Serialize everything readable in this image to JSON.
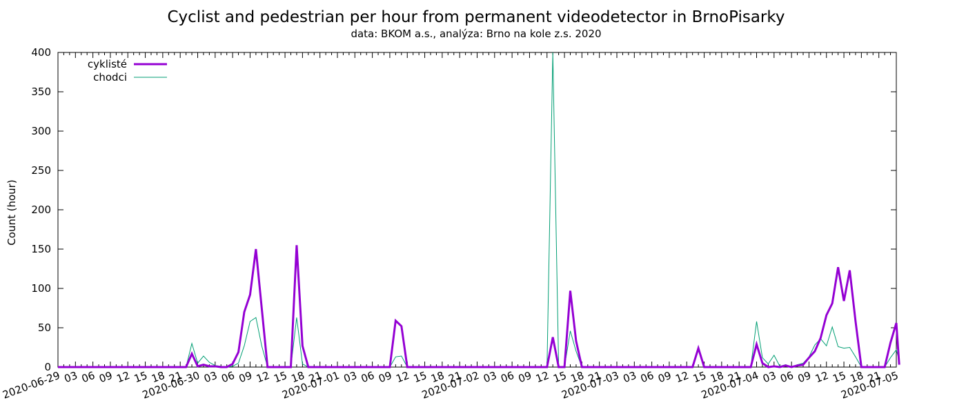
{
  "chart_data": {
    "type": "line",
    "title": "Cyclist and pedestrian per hour from permanent videodetector in BrnoPisarky",
    "subtitle": "data: BKOM a.s., analýza: Brno na kole z.s. 2020",
    "ylabel": "Count (hour)",
    "xlabel": "",
    "ylim": [
      0,
      400
    ],
    "yticks": [
      0,
      50,
      100,
      150,
      200,
      250,
      300,
      350,
      400
    ],
    "xlim": [
      "2020-06-29 00:00",
      "2020-07-05 00:00"
    ],
    "xticks": [
      "2020-06-29",
      "03",
      "06",
      "09",
      "12",
      "15",
      "18",
      "21",
      "2020-06-30",
      "03",
      "06",
      "09",
      "12",
      "15",
      "18",
      "21",
      "2020-07-01",
      "03",
      "06",
      "09",
      "12",
      "15",
      "18",
      "21",
      "2020-07-02",
      "03",
      "06",
      "09",
      "12",
      "15",
      "18",
      "21",
      "2020-07-03",
      "03",
      "06",
      "09",
      "12",
      "15",
      "18",
      "21",
      "2020-07-04",
      "03",
      "06",
      "09",
      "12",
      "15",
      "18",
      "21",
      "2020-07-05"
    ],
    "legend_position": "top-left",
    "grid": false,
    "colors": {
      "cykliste": "#9400d3",
      "chodci": "#009e73"
    },
    "series": [
      {
        "name": "cyklisté",
        "color": "#9400d3",
        "points": [
          [
            "2020-06-29 00:00",
            0
          ],
          [
            "2020-06-29 22:00",
            0
          ],
          [
            "2020-06-29 23:00",
            17
          ],
          [
            "2020-06-30 00:00",
            1
          ],
          [
            "2020-06-30 01:00",
            3
          ],
          [
            "2020-06-30 02:00",
            1
          ],
          [
            "2020-06-30 03:00",
            1
          ],
          [
            "2020-06-30 04:00",
            0
          ],
          [
            "2020-06-30 05:00",
            0
          ],
          [
            "2020-06-30 06:00",
            4
          ],
          [
            "2020-06-30 07:00",
            19
          ],
          [
            "2020-06-30 08:00",
            70
          ],
          [
            "2020-06-30 09:00",
            92
          ],
          [
            "2020-06-30 10:00",
            150
          ],
          [
            "2020-06-30 11:00",
            75
          ],
          [
            "2020-06-30 12:00",
            0
          ],
          [
            "2020-06-30 16:00",
            0
          ],
          [
            "2020-06-30 17:00",
            155
          ],
          [
            "2020-06-30 18:00",
            27
          ],
          [
            "2020-06-30 19:00",
            0
          ],
          [
            "2020-07-01 09:00",
            0
          ],
          [
            "2020-07-01 10:00",
            59
          ],
          [
            "2020-07-01 11:00",
            52
          ],
          [
            "2020-07-01 12:00",
            0
          ],
          [
            "2020-07-02 12:00",
            0
          ],
          [
            "2020-07-02 13:00",
            38
          ],
          [
            "2020-07-02 14:00",
            0
          ],
          [
            "2020-07-02 15:00",
            0
          ],
          [
            "2020-07-02 16:00",
            97
          ],
          [
            "2020-07-02 17:00",
            33
          ],
          [
            "2020-07-02 18:00",
            0
          ],
          [
            "2020-07-03 13:00",
            0
          ],
          [
            "2020-07-03 14:00",
            24
          ],
          [
            "2020-07-03 15:00",
            0
          ],
          [
            "2020-07-03 23:00",
            0
          ],
          [
            "2020-07-04 00:00",
            29
          ],
          [
            "2020-07-04 01:00",
            5
          ],
          [
            "2020-07-04 02:00",
            0
          ],
          [
            "2020-07-04 03:00",
            1
          ],
          [
            "2020-07-04 04:00",
            0
          ],
          [
            "2020-07-04 05:00",
            2
          ],
          [
            "2020-07-04 06:00",
            0
          ],
          [
            "2020-07-04 07:00",
            2
          ],
          [
            "2020-07-04 08:00",
            3
          ],
          [
            "2020-07-04 09:00",
            12
          ],
          [
            "2020-07-04 10:00",
            20
          ],
          [
            "2020-07-04 11:00",
            37
          ],
          [
            "2020-07-04 12:00",
            66
          ],
          [
            "2020-07-04 13:00",
            81
          ],
          [
            "2020-07-04 14:00",
            127
          ],
          [
            "2020-07-04 15:00",
            84
          ],
          [
            "2020-07-04 16:00",
            123
          ],
          [
            "2020-07-04 17:00",
            58
          ],
          [
            "2020-07-04 18:00",
            0
          ],
          [
            "2020-07-04 22:00",
            0
          ],
          [
            "2020-07-04 23:00",
            31
          ],
          [
            "2020-07-05 00:00",
            56
          ],
          [
            "2020-07-05 00:30",
            3
          ]
        ]
      },
      {
        "name": "chodci",
        "color": "#009e73",
        "points": [
          [
            "2020-06-29 00:00",
            0
          ],
          [
            "2020-06-29 22:00",
            0
          ],
          [
            "2020-06-29 23:00",
            30
          ],
          [
            "2020-06-30 00:00",
            5
          ],
          [
            "2020-06-30 01:00",
            14
          ],
          [
            "2020-06-30 02:00",
            6
          ],
          [
            "2020-06-30 03:00",
            2
          ],
          [
            "2020-06-30 04:00",
            1
          ],
          [
            "2020-06-30 05:00",
            0
          ],
          [
            "2020-06-30 06:00",
            1
          ],
          [
            "2020-06-30 07:00",
            5
          ],
          [
            "2020-06-30 08:00",
            27
          ],
          [
            "2020-06-30 09:00",
            58
          ],
          [
            "2020-06-30 10:00",
            63
          ],
          [
            "2020-06-30 11:00",
            27
          ],
          [
            "2020-06-30 12:00",
            0
          ],
          [
            "2020-06-30 16:00",
            0
          ],
          [
            "2020-06-30 17:00",
            63
          ],
          [
            "2020-06-30 18:00",
            4
          ],
          [
            "2020-06-30 19:00",
            0
          ],
          [
            "2020-07-01 09:00",
            0
          ],
          [
            "2020-07-01 10:00",
            13
          ],
          [
            "2020-07-01 11:00",
            14
          ],
          [
            "2020-07-01 12:00",
            0
          ],
          [
            "2020-07-02 12:00",
            0
          ],
          [
            "2020-07-02 13:00",
            400
          ],
          [
            "2020-07-02 14:00",
            0
          ],
          [
            "2020-07-02 15:00",
            0
          ],
          [
            "2020-07-02 16:00",
            46
          ],
          [
            "2020-07-02 17:00",
            20
          ],
          [
            "2020-07-02 18:00",
            0
          ],
          [
            "2020-07-03 13:00",
            0
          ],
          [
            "2020-07-03 14:00",
            22
          ],
          [
            "2020-07-03 15:00",
            0
          ],
          [
            "2020-07-03 23:00",
            0
          ],
          [
            "2020-07-04 00:00",
            58
          ],
          [
            "2020-07-04 01:00",
            12
          ],
          [
            "2020-07-04 02:00",
            4
          ],
          [
            "2020-07-04 03:00",
            15
          ],
          [
            "2020-07-04 04:00",
            1
          ],
          [
            "2020-07-04 05:00",
            3
          ],
          [
            "2020-07-04 06:00",
            0
          ],
          [
            "2020-07-04 07:00",
            3
          ],
          [
            "2020-07-04 08:00",
            5
          ],
          [
            "2020-07-04 09:00",
            13
          ],
          [
            "2020-07-04 10:00",
            28
          ],
          [
            "2020-07-04 11:00",
            36
          ],
          [
            "2020-07-04 12:00",
            27
          ],
          [
            "2020-07-04 13:00",
            51
          ],
          [
            "2020-07-04 14:00",
            26
          ],
          [
            "2020-07-04 15:00",
            24
          ],
          [
            "2020-07-04 16:00",
            25
          ],
          [
            "2020-07-04 17:00",
            13
          ],
          [
            "2020-07-04 18:00",
            0
          ],
          [
            "2020-07-04 22:00",
            0
          ],
          [
            "2020-07-04 23:00",
            12
          ],
          [
            "2020-07-05 00:00",
            22
          ],
          [
            "2020-07-05 00:30",
            8
          ]
        ]
      }
    ]
  }
}
